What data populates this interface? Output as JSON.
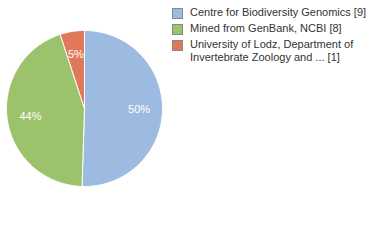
{
  "chart_data": {
    "type": "pie",
    "categories": [
      "Centre for Biodiversity Genomics [9]",
      "Mined from GenBank, NCBI [8]",
      "University of Lodz, Department of Invertebrate Zoology and ... [1]"
    ],
    "values": [
      50,
      44,
      5
    ],
    "value_labels": [
      "50%",
      "44%",
      "5%"
    ],
    "colors": [
      "#9dbbe0",
      "#9cc36c",
      "#e0795a"
    ],
    "data_labels": true,
    "legend": "right"
  }
}
